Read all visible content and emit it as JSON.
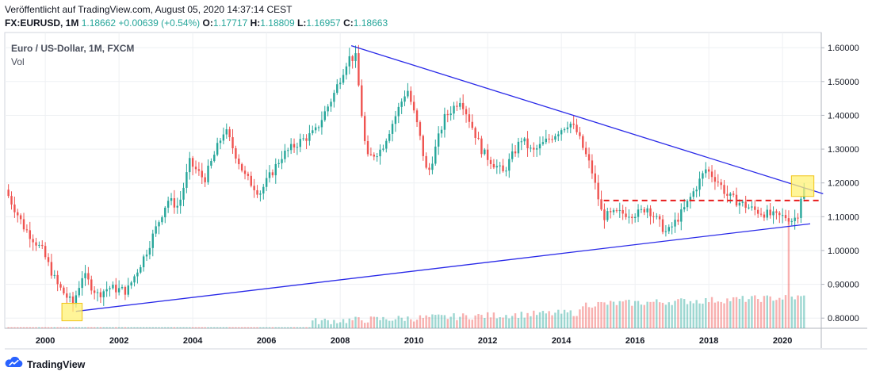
{
  "header": {
    "published": "Veröffentlicht auf TradingView.com, August 05, 2020 14:37:14 CEST",
    "symbol": "FX:EURUSD, 1M",
    "last": "1.18662",
    "change": "+0.00639 (+0.54%)",
    "open_label": "O:",
    "open": "1.17717",
    "high_label": "H:",
    "high": "1.18809",
    "low_label": "L:",
    "low": "1.16957",
    "close_label": "C:",
    "close": "1.18663"
  },
  "pane": {
    "title": "Euro / US-Dollar, 1M, FXCM",
    "volume_label": "Vol"
  },
  "footer": {
    "brand": "TradingView"
  },
  "colors": {
    "up": "#26a69a",
    "down": "#ef5350",
    "trendline": "#2a2ae8",
    "support_dashed": "#e81c1c",
    "highlight_fill": "#fff176",
    "highlight_stroke": "#f0c419",
    "grid": "#eef0f3",
    "axis_text": "#131722"
  },
  "icons": {
    "logo": "tradingview-cloud-icon"
  },
  "chart_data": {
    "type": "candlestick",
    "title": "Euro / US-Dollar, 1M, FXCM",
    "ylim": [
      0.77,
      1.645
    ],
    "xlim": [
      1998.9,
      2021.05
    ],
    "y_ticks": [
      "1.60000",
      "1.50000",
      "1.40000",
      "1.30000",
      "1.20000",
      "1.10000",
      "1.00000",
      "0.90000",
      "0.80000"
    ],
    "y_tick_values": [
      1.6,
      1.5,
      1.4,
      1.3,
      1.2,
      1.1,
      1.0,
      0.9,
      0.8
    ],
    "x_ticks": [
      "2000",
      "2002",
      "2004",
      "2006",
      "2008",
      "2010",
      "2012",
      "2014",
      "2016",
      "2018",
      "2020"
    ],
    "x_tick_values": [
      2000,
      2002,
      2004,
      2006,
      2008,
      2010,
      2012,
      2014,
      2016,
      2018,
      2020
    ],
    "anchors": [
      [
        1999.0,
        1.18
      ],
      [
        1999.5,
        1.07
      ],
      [
        2000.0,
        1.0
      ],
      [
        2000.4,
        0.9
      ],
      [
        2000.83,
        0.84
      ],
      [
        2001.1,
        0.93
      ],
      [
        2001.5,
        0.87
      ],
      [
        2001.8,
        0.89
      ],
      [
        2002.3,
        0.88
      ],
      [
        2002.8,
        0.99
      ],
      [
        2003.4,
        1.15
      ],
      [
        2003.7,
        1.13
      ],
      [
        2004.0,
        1.26
      ],
      [
        2004.4,
        1.21
      ],
      [
        2004.95,
        1.36
      ],
      [
        2005.5,
        1.22
      ],
      [
        2005.9,
        1.17
      ],
      [
        2006.5,
        1.28
      ],
      [
        2006.95,
        1.32
      ],
      [
        2007.4,
        1.35
      ],
      [
        2007.9,
        1.46
      ],
      [
        2008.3,
        1.57
      ],
      [
        2008.5,
        1.57
      ],
      [
        2008.8,
        1.27
      ],
      [
        2009.2,
        1.3
      ],
      [
        2009.9,
        1.48
      ],
      [
        2010.2,
        1.36
      ],
      [
        2010.45,
        1.22
      ],
      [
        2010.9,
        1.39
      ],
      [
        2011.35,
        1.45
      ],
      [
        2011.95,
        1.29
      ],
      [
        2012.5,
        1.23
      ],
      [
        2013.0,
        1.33
      ],
      [
        2013.3,
        1.29
      ],
      [
        2014.3,
        1.38
      ],
      [
        2014.5,
        1.35
      ],
      [
        2014.9,
        1.24
      ],
      [
        2015.2,
        1.1
      ],
      [
        2015.6,
        1.11
      ],
      [
        2016.2,
        1.11
      ],
      [
        2016.4,
        1.13
      ],
      [
        2016.95,
        1.05
      ],
      [
        2017.4,
        1.12
      ],
      [
        2018.0,
        1.24
      ],
      [
        2018.3,
        1.21
      ],
      [
        2018.6,
        1.16
      ],
      [
        2019.3,
        1.12
      ],
      [
        2019.9,
        1.1
      ],
      [
        2020.2,
        1.1
      ],
      [
        2020.35,
        1.09
      ],
      [
        2020.45,
        1.1
      ],
      [
        2020.55,
        1.12
      ],
      [
        2020.6,
        1.18
      ]
    ],
    "trendlines": [
      {
        "type": "line",
        "x1": 2008.3,
        "y1": 1.606,
        "x2": 2021.1,
        "y2": 1.168
      },
      {
        "type": "line",
        "x1": 2000.83,
        "y1": 0.82,
        "x2": 2020.75,
        "y2": 1.079
      }
    ],
    "dashed_level": {
      "x1": 2015.15,
      "x2": 2021.05,
      "y": 1.148
    },
    "highlights": [
      {
        "x1": 2000.45,
        "x2": 2001.0,
        "y1": 0.792,
        "y2": 0.844
      },
      {
        "x1": 2020.24,
        "x2": 2020.85,
        "y1": 1.16,
        "y2": 1.221
      }
    ],
    "volume": {
      "spike_date": 2020.2,
      "spike_height": 0.37
    }
  }
}
